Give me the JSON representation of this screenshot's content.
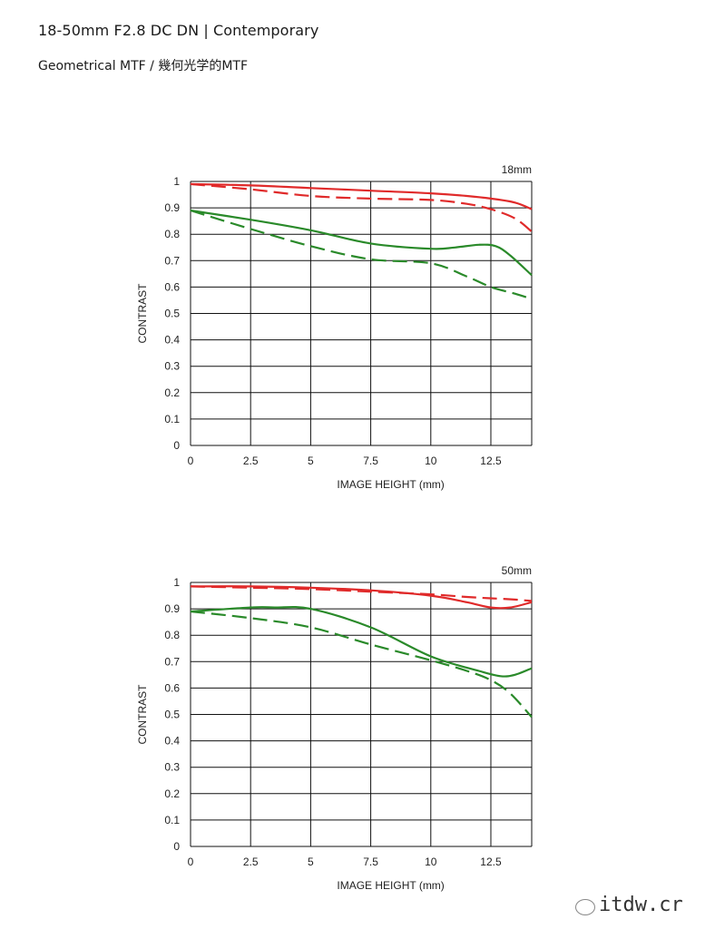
{
  "header": {
    "title": "18-50mm F2.8 DC DN | Contemporary",
    "subtitle": "Geometrical MTF / 幾何光学的MTF"
  },
  "watermark": {
    "text": "itdw.cr"
  },
  "colors": {
    "red": "#e02a2a",
    "green": "#2a8a2a",
    "grid": "#111111"
  },
  "chart_data": [
    {
      "type": "line",
      "focal_label": "18mm",
      "xlabel": "IMAGE HEIGHT (mm)",
      "ylabel": "CONTRAST",
      "xlim": [
        0,
        14.2
      ],
      "ylim": [
        0,
        1
      ],
      "x_ticks": [
        "0",
        "2.5",
        "5",
        "7.5",
        "10",
        "12.5"
      ],
      "y_ticks": [
        "0",
        "0.1",
        "0.2",
        "0.3",
        "0.4",
        "0.5",
        "0.6",
        "0.7",
        "0.8",
        "0.9",
        "1"
      ],
      "grid": true,
      "series": [
        {
          "color": "red",
          "style": "solid",
          "x": [
            0,
            2.5,
            5,
            7.5,
            10,
            11.5,
            12.5,
            13.5,
            14.2
          ],
          "y": [
            0.99,
            0.985,
            0.975,
            0.965,
            0.955,
            0.945,
            0.935,
            0.92,
            0.895
          ]
        },
        {
          "color": "red",
          "style": "dashed",
          "x": [
            0,
            2.5,
            5,
            7.5,
            10,
            11.5,
            12.5,
            13.5,
            14.2
          ],
          "y": [
            0.99,
            0.97,
            0.945,
            0.935,
            0.93,
            0.915,
            0.895,
            0.86,
            0.81
          ]
        },
        {
          "color": "green",
          "style": "solid",
          "x": [
            0,
            2.5,
            5,
            7.5,
            10,
            11,
            12,
            12.7,
            13.3,
            14.2
          ],
          "y": [
            0.89,
            0.855,
            0.815,
            0.765,
            0.745,
            0.75,
            0.76,
            0.755,
            0.72,
            0.645
          ]
        },
        {
          "color": "green",
          "style": "dashed",
          "x": [
            0,
            2.5,
            5,
            7.5,
            10,
            11.5,
            12.5,
            13.5,
            14.2
          ],
          "y": [
            0.89,
            0.82,
            0.755,
            0.705,
            0.69,
            0.64,
            0.6,
            0.575,
            0.555
          ]
        }
      ]
    },
    {
      "type": "line",
      "focal_label": "50mm",
      "xlabel": "IMAGE HEIGHT (mm)",
      "ylabel": "CONTRAST",
      "xlim": [
        0,
        14.2
      ],
      "ylim": [
        0,
        1
      ],
      "x_ticks": [
        "0",
        "2.5",
        "5",
        "7.5",
        "10",
        "12.5"
      ],
      "y_ticks": [
        "0",
        "0.1",
        "0.2",
        "0.3",
        "0.4",
        "0.5",
        "0.6",
        "0.7",
        "0.8",
        "0.9",
        "1"
      ],
      "grid": true,
      "series": [
        {
          "color": "red",
          "style": "solid",
          "x": [
            0,
            2.5,
            5,
            7.5,
            10,
            11.5,
            12.5,
            13.3,
            14.2
          ],
          "y": [
            0.985,
            0.985,
            0.98,
            0.97,
            0.95,
            0.925,
            0.905,
            0.905,
            0.925
          ]
        },
        {
          "color": "red",
          "style": "dashed",
          "x": [
            0,
            2.5,
            5,
            7.5,
            10,
            11.5,
            12.5,
            13.5,
            14.2
          ],
          "y": [
            0.985,
            0.98,
            0.975,
            0.965,
            0.955,
            0.945,
            0.94,
            0.935,
            0.93
          ]
        },
        {
          "color": "green",
          "style": "solid",
          "x": [
            0,
            2.5,
            3.5,
            5,
            7.5,
            10,
            12,
            12.9,
            13.5,
            14.2
          ],
          "y": [
            0.89,
            0.905,
            0.905,
            0.9,
            0.83,
            0.72,
            0.665,
            0.645,
            0.65,
            0.675
          ]
        },
        {
          "color": "green",
          "style": "dashed",
          "x": [
            0,
            2.5,
            5,
            7.5,
            10,
            11.5,
            12.5,
            13.3,
            14.2
          ],
          "y": [
            0.89,
            0.865,
            0.83,
            0.765,
            0.705,
            0.665,
            0.63,
            0.58,
            0.49
          ]
        }
      ]
    }
  ]
}
